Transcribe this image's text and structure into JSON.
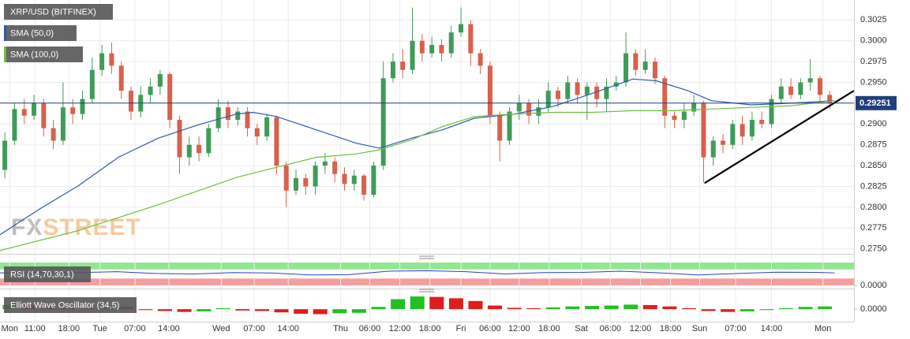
{
  "chart_data": [
    {
      "type": "candlestick",
      "title": "XRP/USD (BITFINEX)",
      "watermark": [
        "FX",
        "STREET"
      ],
      "up_color": "#3f9b58",
      "down_color": "#d9604c",
      "xlim": [
        0,
        88
      ],
      "ylim": [
        0.2744,
        0.3049
      ],
      "grid": true,
      "yticks": [
        {
          "value": 0.275,
          "label": "0.2750"
        },
        0.2775,
        {
          "value": 0.28,
          "label": "0.2800"
        },
        0.2825,
        {
          "value": 0.285,
          "label": "0.2850"
        },
        0.2875,
        {
          "value": 0.29,
          "label": "0.2900"
        },
        {
          "value": 0.295,
          "label": "0.2950"
        },
        0.2975,
        {
          "value": 0.3,
          "label": "0.3000"
        },
        0.3025
      ],
      "last_price": 0.29251,
      "last_price_color": "#1f3f7a",
      "open": [
        0.2845,
        0.288,
        0.2918,
        0.291,
        0.2925,
        0.2895,
        0.288,
        0.292,
        0.2912,
        0.293,
        0.2965,
        0.2985,
        0.297,
        0.294,
        0.2915,
        0.2935,
        0.2945,
        0.296,
        0.2905,
        0.286,
        0.2875,
        0.2865,
        0.2895,
        0.292,
        0.2905,
        0.2915,
        0.2895,
        0.2885,
        0.2908,
        0.285,
        0.282,
        0.2835,
        0.2825,
        0.285,
        0.2855,
        0.284,
        0.2828,
        0.2838,
        0.2815,
        0.285,
        0.2955,
        0.2975,
        0.2965,
        0.3,
        0.2985,
        0.2995,
        0.2985,
        0.301,
        0.302,
        0.2985,
        0.297,
        0.291,
        0.288,
        0.2915,
        0.2925,
        0.291,
        0.292,
        0.294,
        0.293,
        0.295,
        0.2935,
        0.2945,
        0.293,
        0.2945,
        0.295,
        0.2985,
        0.2965,
        0.2975,
        0.2955,
        0.291,
        0.2905,
        0.2915,
        0.2925,
        0.286,
        0.288,
        0.2875,
        0.29,
        0.2885,
        0.2905,
        0.29,
        0.293,
        0.2945,
        0.2935,
        0.295,
        0.2955,
        0.2935
      ],
      "high": [
        0.289,
        0.2925,
        0.293,
        0.2935,
        0.293,
        0.2905,
        0.295,
        0.293,
        0.294,
        0.298,
        0.2995,
        0.2998,
        0.2975,
        0.2945,
        0.2945,
        0.2955,
        0.2965,
        0.2962,
        0.291,
        0.2885,
        0.2885,
        0.29,
        0.293,
        0.2928,
        0.292,
        0.292,
        0.29,
        0.2912,
        0.291,
        0.2855,
        0.2845,
        0.284,
        0.2855,
        0.2865,
        0.286,
        0.2848,
        0.2845,
        0.284,
        0.2855,
        0.2975,
        0.2985,
        0.299,
        0.304,
        0.3008,
        0.3005,
        0.3002,
        0.3018,
        0.304,
        0.3025,
        0.299,
        0.2975,
        0.2915,
        0.292,
        0.2935,
        0.293,
        0.293,
        0.295,
        0.2945,
        0.2958,
        0.2955,
        0.295,
        0.295,
        0.2955,
        0.2958,
        0.301,
        0.299,
        0.299,
        0.298,
        0.2958,
        0.2915,
        0.2925,
        0.2935,
        0.2928,
        0.2885,
        0.2888,
        0.2905,
        0.291,
        0.2915,
        0.2915,
        0.2935,
        0.2955,
        0.2955,
        0.2955,
        0.2978,
        0.2958,
        0.294
      ],
      "low": [
        0.2835,
        0.2875,
        0.29,
        0.2905,
        0.2885,
        0.287,
        0.2875,
        0.29,
        0.2905,
        0.2925,
        0.2958,
        0.296,
        0.293,
        0.2905,
        0.2908,
        0.2925,
        0.2935,
        0.2895,
        0.284,
        0.285,
        0.2855,
        0.286,
        0.289,
        0.2895,
        0.2898,
        0.2885,
        0.2875,
        0.288,
        0.284,
        0.28,
        0.2815,
        0.2815,
        0.2815,
        0.284,
        0.283,
        0.282,
        0.282,
        0.2808,
        0.2812,
        0.2845,
        0.295,
        0.2955,
        0.296,
        0.2975,
        0.298,
        0.2975,
        0.298,
        0.3005,
        0.297,
        0.296,
        0.29,
        0.2855,
        0.2875,
        0.2905,
        0.29,
        0.29,
        0.2915,
        0.292,
        0.2925,
        0.2925,
        0.2905,
        0.292,
        0.2915,
        0.294,
        0.2945,
        0.2958,
        0.296,
        0.2948,
        0.2895,
        0.2895,
        0.2895,
        0.291,
        0.283,
        0.285,
        0.2865,
        0.287,
        0.2875,
        0.288,
        0.2895,
        0.2895,
        0.2925,
        0.293,
        0.293,
        0.294,
        0.2925,
        0.2918
      ],
      "close": [
        0.288,
        0.2918,
        0.291,
        0.2925,
        0.2895,
        0.288,
        0.292,
        0.2912,
        0.293,
        0.2965,
        0.2985,
        0.297,
        0.294,
        0.2915,
        0.2935,
        0.2945,
        0.296,
        0.2905,
        0.286,
        0.2875,
        0.2865,
        0.2895,
        0.292,
        0.2905,
        0.2915,
        0.2895,
        0.2885,
        0.2908,
        0.285,
        0.282,
        0.2835,
        0.2825,
        0.285,
        0.2855,
        0.284,
        0.2828,
        0.2838,
        0.2815,
        0.285,
        0.2955,
        0.2975,
        0.2965,
        0.3,
        0.2985,
        0.2995,
        0.2985,
        0.301,
        0.302,
        0.2985,
        0.297,
        0.291,
        0.288,
        0.2915,
        0.2925,
        0.291,
        0.292,
        0.294,
        0.293,
        0.295,
        0.2935,
        0.2945,
        0.293,
        0.2945,
        0.295,
        0.2985,
        0.2965,
        0.2975,
        0.2955,
        0.291,
        0.2905,
        0.2915,
        0.2925,
        0.286,
        0.288,
        0.2875,
        0.29,
        0.2885,
        0.2905,
        0.29,
        0.293,
        0.2945,
        0.2935,
        0.295,
        0.2955,
        0.2935,
        0.2925
      ],
      "series": [
        {
          "name": "SMA (50,0)",
          "color": "#2a5db0",
          "x": [
            0,
            4.1,
            8.1,
            12.2,
            16.3,
            20.4,
            24.4,
            26.1,
            28.5,
            32.6,
            36.7,
            39.1,
            42.4,
            45.6,
            48.9,
            53,
            57,
            61.1,
            65.2,
            67.6,
            70.9,
            73.3,
            77.4,
            81.5,
            86
          ],
          "values": [
            0.2767,
            0.2798,
            0.2826,
            0.286,
            0.2883,
            0.2899,
            0.2912,
            0.2914,
            0.2909,
            0.2893,
            0.2877,
            0.2871,
            0.2883,
            0.2893,
            0.2907,
            0.2912,
            0.2921,
            0.2937,
            0.2954,
            0.2952,
            0.294,
            0.2928,
            0.2923,
            0.2925,
            0.2928
          ]
        },
        {
          "name": "SMA (100,0)",
          "color": "#6cbf3c",
          "x": [
            0,
            8.1,
            16.3,
            24.4,
            28.5,
            32.6,
            36.7,
            39.1,
            42.4,
            45.6,
            48.9,
            53,
            57,
            61.1,
            65.2,
            69.3,
            73.3,
            77.4,
            81.5,
            86
          ],
          "values": [
            0.2748,
            0.2772,
            0.2803,
            0.2836,
            0.2848,
            0.286,
            0.2864,
            0.2869,
            0.2881,
            0.2897,
            0.2909,
            0.2912,
            0.2914,
            0.2914,
            0.2916,
            0.2916,
            0.2918,
            0.292,
            0.2922,
            0.2928
          ]
        }
      ],
      "trendline": {
        "color": "#000000",
        "x": [
          72.6,
          88
        ],
        "values": [
          0.2829,
          0.294
        ]
      }
    },
    {
      "type": "line",
      "title": "RSI (14,70,30,1)",
      "color": "#2a3fd0",
      "xlim": [
        0,
        88
      ],
      "ylim": [
        0,
        100
      ],
      "yticks": [
        {
          "value": 0,
          "label": "0.0000"
        }
      ],
      "bands": [
        {
          "range": [
            70,
            100
          ],
          "color": "#7de37d"
        },
        {
          "range": [
            0,
            30
          ],
          "color": "#f28d8d"
        }
      ],
      "x": [
        0,
        4,
        8,
        12,
        16,
        20,
        24,
        28,
        32,
        36,
        40,
        44,
        48,
        52,
        56,
        60,
        64,
        68,
        72,
        76,
        80,
        84,
        86
      ],
      "values": [
        55,
        57,
        56,
        60,
        52,
        50,
        56,
        54,
        46,
        47,
        62,
        64,
        60,
        50,
        56,
        57,
        62,
        55,
        46,
        52,
        58,
        57,
        55
      ]
    },
    {
      "type": "bar",
      "title": "Elliott Wave Oscillator (34,5)",
      "up_color": "#22c022",
      "down_color": "#e01c1c",
      "xlim": [
        0,
        88
      ],
      "ylim": [
        -0.0024,
        0.0035
      ],
      "yticks": [
        {
          "value": 0,
          "label": "0.0000"
        }
      ],
      "x": [
        1,
        3,
        5,
        7,
        9,
        11,
        13,
        15,
        17,
        19,
        21,
        23,
        25,
        27,
        29,
        31,
        33,
        35,
        37,
        39,
        41,
        43,
        45,
        47,
        49,
        51,
        53,
        55,
        57,
        59,
        61,
        63,
        65,
        67,
        69,
        71,
        73,
        75,
        77,
        79,
        81,
        83,
        85
      ],
      "values": [
        0.0009,
        0.0008,
        0.0006,
        0.0004,
        0.0003,
        0.0006,
        0.0005,
        -0.0002,
        -0.0004,
        -0.0006,
        -0.0005,
        0.0002,
        -0.0003,
        -0.0004,
        -0.0007,
        -0.001,
        -0.0011,
        -0.0009,
        -0.0008,
        0.0005,
        0.0022,
        0.0028,
        0.0027,
        0.0024,
        0.0018,
        0.0008,
        0.0003,
        0.0002,
        0.0004,
        0.0006,
        0.0007,
        0.0008,
        0.001,
        0.0009,
        0.0006,
        0.0002,
        -0.0004,
        -0.0006,
        -0.0005,
        -0.0002,
        0.0002,
        0.0005,
        0.0006
      ],
      "xticks": [
        {
          "value": 1.0,
          "label": "Mon"
        },
        {
          "value": 3.6,
          "label": "11:00"
        },
        {
          "value": 7.1,
          "label": "18:00"
        },
        {
          "value": 10.3,
          "label": "Tue"
        },
        {
          "value": 13.9,
          "label": "07:00"
        },
        {
          "value": 17.4,
          "label": "14:00"
        },
        {
          "value": 22.8,
          "label": "Wed"
        },
        {
          "value": 26.2,
          "label": "07:00"
        },
        {
          "value": 29.7,
          "label": "14:00"
        },
        {
          "value": 35.1,
          "label": "Thu"
        },
        {
          "value": 38.1,
          "label": "06:00"
        },
        {
          "value": 41.2,
          "label": "12:00"
        },
        {
          "value": 44.3,
          "label": "18:00"
        },
        {
          "value": 47.5,
          "label": "Fri"
        },
        {
          "value": 50.5,
          "label": "06:00"
        },
        {
          "value": 53.5,
          "label": "12:00"
        },
        {
          "value": 56.6,
          "label": "18:00"
        },
        {
          "value": 59.9,
          "label": "Sat"
        },
        {
          "value": 62.9,
          "label": "06:00"
        },
        {
          "value": 66.0,
          "label": "12:00"
        },
        {
          "value": 69.1,
          "label": "18:00"
        },
        {
          "value": 72.1,
          "label": "Sun"
        },
        {
          "value": 75.8,
          "label": "07:00"
        },
        {
          "value": 79.5,
          "label": "14:00"
        },
        {
          "value": 84.8,
          "label": "Mon"
        }
      ]
    }
  ]
}
